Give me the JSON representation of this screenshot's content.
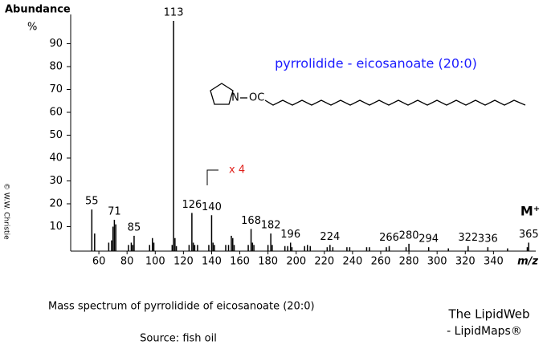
{
  "chart_data": {
    "type": "stick",
    "y_label": "Abundance",
    "y_unit": "%",
    "x_label": "m/z",
    "title": "pyrrolidide - eicosanoate (20:0)",
    "structure_labels": [
      "N",
      "OC"
    ],
    "annotation": "x 4",
    "molecular_ion": "M⁺",
    "caption": "Mass spectrum of pyrrolidide of eicosanoate (20:0)",
    "source": "Source: fish oil",
    "credit": [
      "The LipidWeb",
      "- LipidMaps®"
    ],
    "copyright": "© W.W. Christie",
    "color": "#000000",
    "title_color": "#1a1aff",
    "annotation_color": "#e0201b",
    "xlim": [
      40,
      370
    ],
    "ylim": [
      0,
      100
    ],
    "xticks": [
      60,
      80,
      100,
      120,
      140,
      160,
      180,
      200,
      220,
      240,
      260,
      280,
      300,
      320,
      340
    ],
    "yticks": [
      10,
      20,
      30,
      40,
      50,
      60,
      70,
      80,
      90
    ],
    "peaks": {
      "x": [
        55,
        71,
        85,
        113,
        126,
        140,
        168,
        182,
        196,
        224,
        266,
        280,
        294,
        322,
        336,
        365
      ],
      "values": [
        17.5,
        13,
        6,
        100,
        16,
        15,
        9,
        7,
        3,
        2,
        1.5,
        2.5,
        1,
        1.5,
        1,
        3
      ]
    },
    "minor_peaks": {
      "x": [
        57,
        67,
        69,
        70,
        72,
        81,
        83,
        84,
        96,
        98,
        99,
        112,
        114,
        115,
        124,
        127,
        128,
        130,
        138,
        141,
        142,
        150,
        152,
        154,
        155,
        156,
        166,
        169,
        170,
        180,
        183,
        192,
        194,
        197,
        206,
        208,
        210,
        222,
        226,
        236,
        238,
        250,
        252,
        264,
        278,
        308,
        350,
        364
      ],
      "values": [
        7,
        3,
        4,
        10,
        11,
        2,
        3,
        2,
        2,
        5,
        3,
        2,
        5,
        1.5,
        2,
        3,
        2,
        2,
        2,
        3,
        2,
        2,
        2,
        6,
        5,
        2,
        2,
        3,
        2,
        2,
        2,
        1.5,
        1.5,
        1,
        1.5,
        2,
        1.5,
        1,
        1,
        1,
        1,
        1,
        1,
        1,
        1,
        0.5,
        0.5,
        1
      ]
    }
  }
}
